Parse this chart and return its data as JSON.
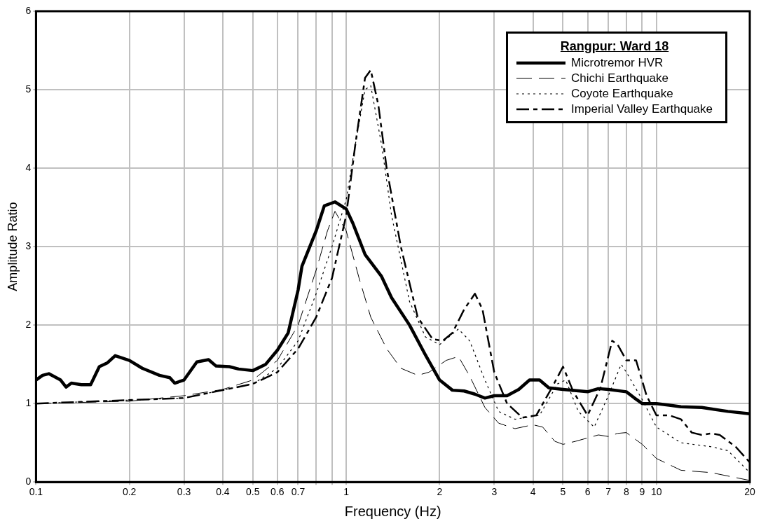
{
  "chart_data": {
    "type": "line",
    "xlabel": "Frequency (Hz)",
    "ylabel": "Amplitude Ratio",
    "legend_title": "Rangpur: Ward 18",
    "log": "x",
    "grid": true,
    "legend": "top right",
    "marker": "none",
    "xlim": [
      0.1,
      20
    ],
    "xticks": [
      0.1,
      0.2,
      0.3,
      0.4,
      0.5,
      0.6,
      0.7,
      {
        "value": 0.8,
        "label": null
      },
      {
        "value": 0.9,
        "label": null
      },
      1,
      2,
      3,
      4,
      5,
      6,
      7,
      8,
      9,
      10,
      20
    ],
    "ylim": [
      0,
      6
    ],
    "yticks": [
      0,
      1,
      2,
      3,
      4,
      5,
      6
    ],
    "series": [
      {
        "name": "Microtremor HVR",
        "color": "#000000",
        "line_style": "solid",
        "x": [
          0.1,
          0.105,
          0.11,
          0.12,
          0.125,
          0.13,
          0.14,
          0.15,
          0.16,
          0.17,
          0.18,
          0.2,
          0.22,
          0.25,
          0.27,
          0.28,
          0.3,
          0.33,
          0.36,
          0.38,
          0.42,
          0.45,
          0.5,
          0.55,
          0.6,
          0.65,
          0.7,
          0.72,
          0.8,
          0.85,
          0.92,
          1.0,
          1.05,
          1.15,
          1.3,
          1.4,
          1.6,
          1.8,
          2.0,
          2.2,
          2.4,
          2.6,
          2.8,
          3.0,
          3.3,
          3.6,
          3.9,
          4.2,
          4.5,
          5,
          6,
          6.5,
          7,
          8,
          8.5,
          9,
          10,
          11,
          12,
          14,
          17,
          20
        ],
        "values": [
          1.3,
          1.36,
          1.38,
          1.3,
          1.21,
          1.26,
          1.24,
          1.24,
          1.47,
          1.52,
          1.61,
          1.55,
          1.45,
          1.36,
          1.33,
          1.26,
          1.3,
          1.53,
          1.56,
          1.48,
          1.47,
          1.44,
          1.42,
          1.5,
          1.68,
          1.9,
          2.45,
          2.75,
          3.2,
          3.52,
          3.57,
          3.48,
          3.3,
          2.9,
          2.62,
          2.35,
          2.0,
          1.62,
          1.3,
          1.17,
          1.16,
          1.12,
          1.07,
          1.1,
          1.1,
          1.18,
          1.3,
          1.3,
          1.2,
          1.18,
          1.15,
          1.19,
          1.18,
          1.15,
          1.07,
          1.0,
          1.0,
          0.98,
          0.96,
          0.95,
          0.9,
          0.87
        ]
      },
      {
        "name": "Chichi Earthquake",
        "color": "#000000",
        "line_style": "dashed",
        "x": [
          0.1,
          0.2,
          0.3,
          0.4,
          0.5,
          0.6,
          0.7,
          0.8,
          0.87,
          0.92,
          1.0,
          1.1,
          1.2,
          1.35,
          1.5,
          1.7,
          1.85,
          2.1,
          2.3,
          2.5,
          2.8,
          3.1,
          3.5,
          4,
          4.3,
          4.7,
          5,
          5.5,
          6.5,
          7,
          7.5,
          8,
          9,
          10,
          12,
          15,
          20
        ],
        "values": [
          1.0,
          1.03,
          1.1,
          1.18,
          1.3,
          1.55,
          2.0,
          2.7,
          3.2,
          3.45,
          3.2,
          2.6,
          2.1,
          1.7,
          1.45,
          1.36,
          1.4,
          1.55,
          1.6,
          1.35,
          0.95,
          0.75,
          0.68,
          0.73,
          0.7,
          0.52,
          0.48,
          0.52,
          0.6,
          0.58,
          0.62,
          0.63,
          0.48,
          0.3,
          0.15,
          0.12,
          0.02
        ]
      },
      {
        "name": "Coyote Earthquake",
        "color": "#000000",
        "line_style": "dotted",
        "x": [
          0.1,
          0.3,
          0.5,
          0.6,
          0.7,
          0.8,
          0.9,
          1.0,
          1.07,
          1.15,
          1.2,
          1.3,
          1.4,
          1.6,
          1.8,
          2.0,
          2.3,
          2.5,
          2.8,
          3.1,
          3.5,
          4.2,
          4.8,
          5.1,
          5.6,
          6.3,
          7,
          7.7,
          8,
          9,
          10,
          12,
          15,
          17,
          20
        ],
        "values": [
          1.0,
          1.07,
          1.25,
          1.45,
          1.8,
          2.4,
          3.0,
          3.6,
          4.3,
          5.0,
          5.05,
          4.3,
          3.4,
          2.3,
          1.85,
          1.75,
          1.95,
          1.8,
          1.3,
          0.9,
          0.8,
          0.85,
          1.25,
          1.3,
          0.9,
          0.7,
          1.1,
          1.5,
          1.4,
          1.05,
          0.7,
          0.5,
          0.45,
          0.4,
          0.12
        ]
      },
      {
        "name": "Imperial Valley Earthquake",
        "color": "#000000",
        "line_style": "dashed",
        "x": [
          0.1,
          0.3,
          0.5,
          0.6,
          0.7,
          0.8,
          0.9,
          1.0,
          1.07,
          1.15,
          1.2,
          1.27,
          1.35,
          1.5,
          1.7,
          1.9,
          2.05,
          2.2,
          2.4,
          2.6,
          2.75,
          3.0,
          3.3,
          3.7,
          4.1,
          4.6,
          5.0,
          5.4,
          6.0,
          6.6,
          7.2,
          7.5,
          8,
          8.6,
          9.3,
          10,
          11,
          12,
          13,
          14,
          15,
          16,
          18,
          20
        ],
        "values": [
          1.0,
          1.07,
          1.25,
          1.4,
          1.7,
          2.1,
          2.6,
          3.4,
          4.3,
          5.15,
          5.25,
          4.8,
          4.0,
          3.0,
          2.1,
          1.82,
          1.8,
          1.9,
          2.2,
          2.4,
          2.2,
          1.4,
          1.0,
          0.82,
          0.85,
          1.2,
          1.47,
          1.15,
          0.85,
          1.2,
          1.8,
          1.75,
          1.55,
          1.55,
          1.1,
          0.85,
          0.85,
          0.8,
          0.63,
          0.6,
          0.62,
          0.6,
          0.45,
          0.25
        ]
      }
    ]
  }
}
